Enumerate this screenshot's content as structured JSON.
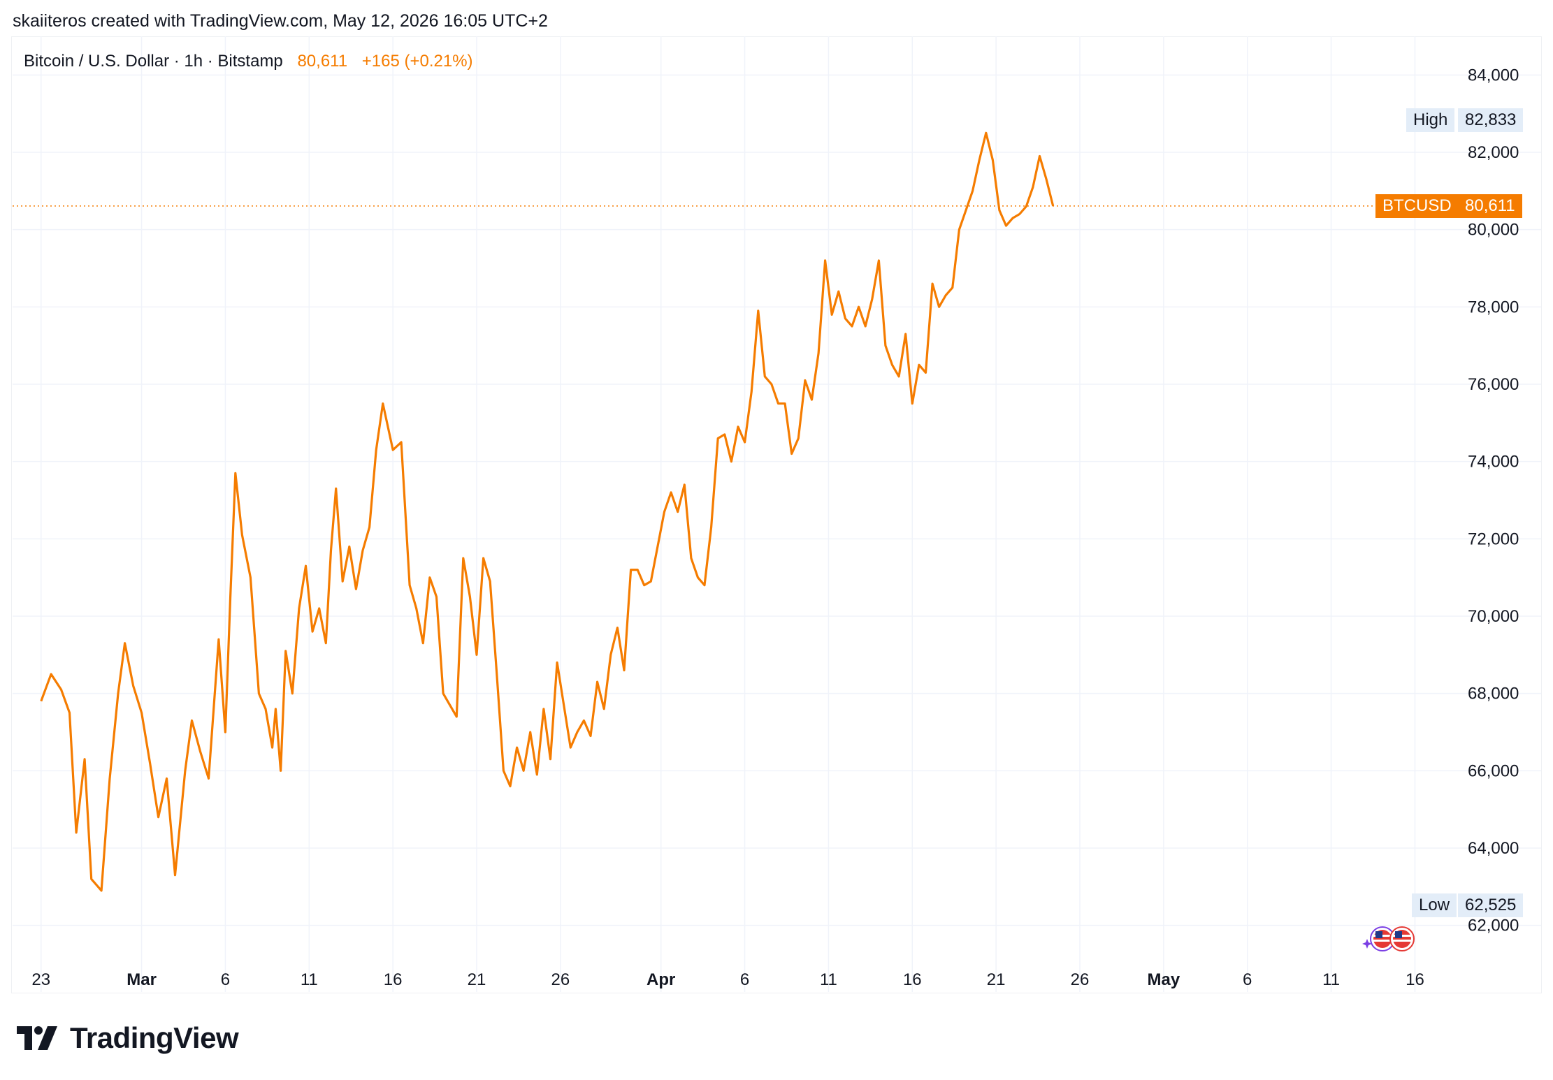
{
  "header": {
    "credit": "skaiiteros created with TradingView.com, May 12, 2026 16:05 UTC+2"
  },
  "legend": {
    "symbol": "Bitcoin / U.S. Dollar · 1h · Bitstamp",
    "price": "80,611",
    "change": "+165 (+0.21%)"
  },
  "tags": {
    "high_label": "High",
    "high_value": "82,833",
    "low_label": "Low",
    "low_value": "62,525",
    "last_label": "BTCUSD",
    "last_value": "80,611"
  },
  "brand": {
    "name": "TradingView"
  },
  "colors": {
    "line": "#f57c00",
    "grid": "#f0f3fa",
    "text": "#131722"
  },
  "chart_data": {
    "type": "line",
    "title": "Bitcoin / U.S. Dollar · 1h · Bitstamp",
    "series": [
      {
        "name": "BTCUSD",
        "x_day_index": [
          0,
          0.6,
          1.2,
          1.7,
          2.1,
          2.6,
          3.0,
          3.6,
          4.1,
          4.6,
          5.0,
          5.5,
          6.0,
          6.5,
          7.0,
          7.5,
          8.0,
          8.6,
          9.0,
          9.5,
          10.0,
          10.6,
          11.0,
          11.3,
          11.6,
          12.0,
          12.5,
          13.0,
          13.4,
          13.8,
          14.0,
          14.3,
          14.6,
          15.0,
          15.4,
          15.8,
          16.2,
          16.6,
          17.0,
          17.3,
          17.6,
          18.0,
          18.4,
          18.8,
          19.2,
          19.6,
          20.0,
          20.4,
          21.0,
          21.5,
          22.0,
          22.4,
          22.8,
          23.2,
          23.6,
          24.0,
          24.4,
          24.8,
          25.2,
          25.6,
          26.0,
          26.4,
          26.8,
          27.2,
          27.6,
          28.0,
          28.4,
          28.8,
          29.2,
          29.6,
          30.0,
          30.4,
          30.8,
          31.2,
          31.6,
          32.0,
          32.4,
          32.8,
          33.2,
          33.6,
          34.0,
          34.4,
          34.8,
          35.2,
          35.6,
          36.0,
          36.4,
          36.8,
          37.2,
          37.6,
          38.0,
          38.4,
          38.8,
          39.2,
          39.6,
          40.0,
          40.4,
          40.8,
          41.2,
          41.6,
          42.0,
          42.4,
          42.8,
          43.2,
          43.6,
          44.0,
          44.4,
          44.8,
          45.2,
          45.6,
          46.0,
          46.4,
          46.8,
          47.2,
          47.6,
          48.0,
          48.4,
          48.8,
          49.2,
          49.6,
          50.0,
          50.4,
          50.8,
          51.2,
          51.6,
          52.0,
          52.4,
          52.8,
          53.2,
          53.6,
          54.0,
          54.4,
          54.8,
          55.2,
          55.6,
          56.0,
          56.4,
          56.8,
          57.2,
          57.6,
          58.0,
          58.4,
          58.8,
          59.2,
          59.6,
          60.0,
          60.4,
          60.8,
          61.2,
          61.6,
          62.0,
          62.4,
          62.8,
          63.2,
          63.6,
          64.0,
          64.4,
          64.8,
          65.2,
          65.6,
          66.0,
          66.4,
          66.8,
          67.2,
          67.6,
          68.0,
          68.4,
          68.8,
          69.2,
          69.6,
          70.0,
          70.4,
          70.8,
          71.2,
          71.6,
          72.0,
          72.4,
          72.8,
          73.2,
          73.6,
          74.0,
          74.4,
          74.8,
          75.2,
          75.6,
          76.0,
          76.4,
          76.8,
          77.2,
          77.6,
          78.0,
          78.4,
          78.8,
          79.2,
          79.6,
          80.0,
          80.4,
          80.8,
          81.2
        ],
        "values": [
          67800,
          68500,
          68100,
          67500,
          64400,
          66300,
          63200,
          62900,
          65800,
          68000,
          69300,
          68200,
          67500,
          66200,
          64800,
          65800,
          63300,
          66000,
          67300,
          66500,
          65800,
          69400,
          67000,
          70500,
          73700,
          72100,
          71000,
          68000,
          67600,
          66600,
          67600,
          66000,
          69100,
          68000,
          70200,
          71300,
          69600,
          70200,
          69300,
          71700,
          73300,
          70900,
          71800,
          70700,
          71700,
          72300,
          74300,
          75500,
          74300,
          74500,
          70800,
          70200,
          69300,
          71000,
          70500,
          68000,
          67700,
          67400,
          71500,
          70500,
          69000,
          71500,
          70900,
          68500,
          66000,
          65600,
          66600,
          66000,
          67000,
          65900,
          67600,
          66300,
          68800,
          67700,
          66600,
          67000,
          67300,
          66900,
          68300,
          67600,
          69000,
          69700,
          68600,
          71200,
          71200,
          70800,
          70900,
          71800,
          72700,
          73200,
          72700,
          73400,
          71500,
          71000,
          70800,
          72300,
          74600,
          74700,
          74000,
          74900,
          74500,
          75800,
          77900,
          76200,
          76000,
          75500,
          75500,
          74200,
          74600,
          76100,
          75600,
          76800,
          79200,
          77800,
          78400,
          77700,
          77500,
          78000,
          77500,
          78200,
          79200,
          77000,
          76500,
          76200,
          77300,
          75500,
          76500,
          76300,
          78600,
          78000,
          78300,
          78500,
          80000,
          80500,
          81000,
          81800,
          82500,
          81800,
          80500,
          80100,
          80300,
          80400,
          80600,
          81100,
          81900,
          81300,
          80611
        ],
        "x_base_label": "Feb 23 (day index 0)"
      }
    ],
    "x_ticks": [
      {
        "label": "23",
        "day": 0,
        "bold": false
      },
      {
        "label": "Mar",
        "day": 6,
        "bold": true
      },
      {
        "label": "6",
        "day": 11,
        "bold": false
      },
      {
        "label": "11",
        "day": 16,
        "bold": false
      },
      {
        "label": "16",
        "day": 21,
        "bold": false
      },
      {
        "label": "21",
        "day": 26,
        "bold": false
      },
      {
        "label": "26",
        "day": 31,
        "bold": false
      },
      {
        "label": "Apr",
        "day": 37,
        "bold": true
      },
      {
        "label": "6",
        "day": 42,
        "bold": false
      },
      {
        "label": "11",
        "day": 47,
        "bold": false
      },
      {
        "label": "16",
        "day": 52,
        "bold": false
      },
      {
        "label": "21",
        "day": 57,
        "bold": false
      },
      {
        "label": "26",
        "day": 62,
        "bold": false
      },
      {
        "label": "May",
        "day": 67,
        "bold": true
      },
      {
        "label": "6",
        "day": 72,
        "bold": false
      },
      {
        "label": "11",
        "day": 77,
        "bold": false
      },
      {
        "label": "16",
        "day": 82,
        "bold": false
      }
    ],
    "y_ticks": [
      "84,000",
      "82,000",
      "80,000",
      "78,000",
      "76,000",
      "74,000",
      "72,000",
      "70,000",
      "68,000",
      "66,000",
      "64,000",
      "62,000"
    ],
    "y_tick_values": [
      84000,
      82000,
      80000,
      78000,
      76000,
      74000,
      72000,
      70000,
      68000,
      66000,
      64000,
      62000
    ],
    "ylim": [
      61000,
      85000
    ],
    "xlim_days": [
      -1.7,
      83.9
    ],
    "last_price": 80611,
    "high": 82833,
    "low": 62525,
    "grid": true
  }
}
